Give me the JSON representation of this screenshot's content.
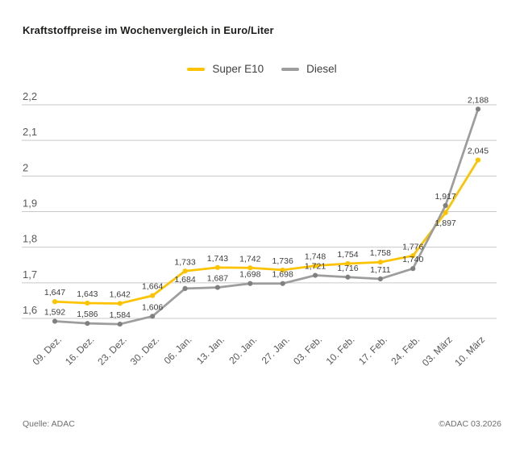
{
  "header": {
    "title": "Kraftstoffpreise im Wochenvergleich in Euro/Liter"
  },
  "footer": {
    "source": "Quelle: ADAC",
    "copyright": "©ADAC 03.2026"
  },
  "colors": {
    "super_e10": "#FDC300",
    "diesel_line": "#9d9d9d",
    "diesel_dot": "#808080",
    "gridline": "#c9c9c9",
    "background": "#ffffff"
  },
  "chart_data": {
    "type": "line",
    "title": "Kraftstoffpreise im Wochenvergleich in Euro/Liter",
    "unit": "Euro/Liter",
    "grid": true,
    "legend_position": "top-center",
    "value_labels": true,
    "decimal_separator": ",",
    "categories": [
      "09. Dez.",
      "16. Dez.",
      "23. Dez.",
      "30. Dez.",
      "06. Jan.",
      "13. Jan.",
      "20. Jan.",
      "27. Jan.",
      "03. Feb.",
      "10. Feb.",
      "17. Feb.",
      "24. Feb.",
      "03. März",
      "10. März"
    ],
    "series": [
      {
        "name": "Super E10",
        "color": "#FDC300",
        "dot_color": "#FDC300",
        "values": [
          1.647,
          1.643,
          1.642,
          1.664,
          1.733,
          1.743,
          1.742,
          1.736,
          1.748,
          1.754,
          1.758,
          1.776,
          1.897,
          2.045
        ],
        "label_below_indices": [
          12
        ]
      },
      {
        "name": "Diesel",
        "color": "#9d9d9d",
        "dot_color": "#808080",
        "values": [
          1.592,
          1.586,
          1.584,
          1.606,
          1.684,
          1.687,
          1.698,
          1.698,
          1.721,
          1.716,
          1.711,
          1.74,
          1.917,
          2.188
        ],
        "label_below_indices": []
      }
    ],
    "y_axis": {
      "min": 1.6,
      "max": 2.2,
      "tick_values": [
        1.6,
        1.7,
        1.8,
        1.9,
        2.0,
        2.1,
        2.2
      ],
      "tick_labels": [
        "1,6",
        "1,7",
        "1,8",
        "1,9",
        "2",
        "2,1",
        "2,2"
      ]
    }
  }
}
